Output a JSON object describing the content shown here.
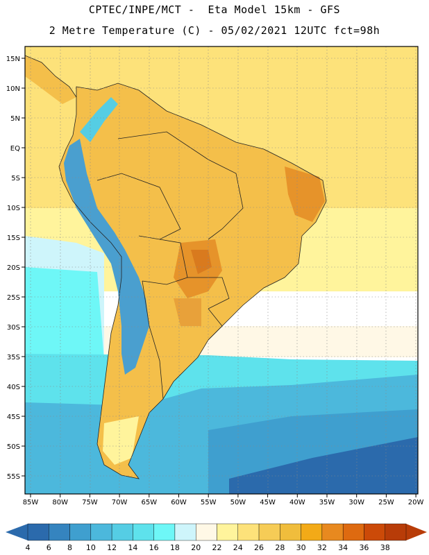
{
  "header": {
    "line1": "CPTEC/INPE/MCT -  Eta Model 15km - GFS",
    "line2": "2 Metre Temperature (C) - 05/02/2021 12UTC fct=98h"
  },
  "map": {
    "region": "South America",
    "lat_labels": [
      "15N",
      "10N",
      "5N",
      "EQ",
      "5S",
      "10S",
      "15S",
      "20S",
      "25S",
      "30S",
      "35S",
      "40S",
      "45S",
      "50S",
      "55S"
    ],
    "lon_labels": [
      "85W",
      "80W",
      "75W",
      "70W",
      "65W",
      "60W",
      "55W",
      "50W",
      "45W",
      "40W",
      "35W",
      "30W",
      "25W",
      "20W"
    ],
    "colors": {
      "land_base": "#f4bf4a",
      "land_hot": "#e6932a",
      "land_hotter": "#d97a1e",
      "ocean_warm": "#fde88f",
      "ocean_mild": "#fff3c6",
      "ocean_cool": "#7fe8f0",
      "ocean_cold": "#4fd6e8",
      "ocean_colder": "#3ea9d4",
      "ocean_coldest": "#2a6fb3",
      "andes": "#4a9fcf",
      "border": "#222222"
    }
  },
  "colorbar": {
    "labels": [
      "4",
      "6",
      "8",
      "10",
      "12",
      "14",
      "16",
      "18",
      "20",
      "22",
      "24",
      "26",
      "28",
      "30",
      "32",
      "34",
      "36",
      "38"
    ],
    "colors": [
      "#2b6aac",
      "#3584bf",
      "#3f9fcf",
      "#4cb8dc",
      "#55cde4",
      "#5ee2ec",
      "#6ef7f7",
      "#cef5fb",
      "#fff8e6",
      "#fff49c",
      "#fde27a",
      "#f6cc56",
      "#f0bd3c",
      "#f3aa17",
      "#e8891f",
      "#de6a10",
      "#cc4a08",
      "#b83c08"
    ],
    "left_arrow_color": "#2b6aac",
    "right_arrow_color": "#b83c08"
  }
}
